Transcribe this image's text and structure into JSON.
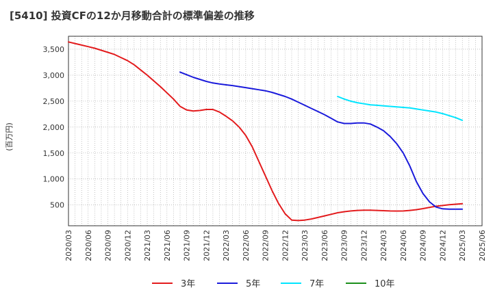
{
  "chart_data": {
    "type": "line",
    "title": "[5410]  投資CFの12か月移動合計の標準偏差の推移",
    "ylabel": "(百万円)",
    "xlabel": "",
    "ylim": [
      100,
      3750
    ],
    "yticks": [
      500,
      1000,
      1500,
      2000,
      2500,
      3000,
      3500
    ],
    "ytick_labels": [
      "500",
      "1,000",
      "1,500",
      "2,000",
      "2,500",
      "3,000",
      "3,500"
    ],
    "x_tick_labels": [
      "2020/03",
      "2020/06",
      "2020/09",
      "2020/12",
      "2021/03",
      "2021/06",
      "2021/09",
      "2021/12",
      "2022/03",
      "2022/06",
      "2022/09",
      "2022/12",
      "2023/03",
      "2023/06",
      "2023/09",
      "2023/12",
      "2024/03",
      "2024/06",
      "2024/09",
      "2024/12",
      "2025/03",
      "2025/06"
    ],
    "grid": true,
    "legend_position": "bottom",
    "series": [
      {
        "name": "3年",
        "color": "#e31a1c",
        "x": [
          "2020/03",
          "2020/04",
          "2020/05",
          "2020/06",
          "2020/07",
          "2020/08",
          "2020/09",
          "2020/10",
          "2020/11",
          "2020/12",
          "2021/01",
          "2021/02",
          "2021/03",
          "2021/04",
          "2021/05",
          "2021/06",
          "2021/07",
          "2021/08",
          "2021/09",
          "2021/10",
          "2021/11",
          "2021/12",
          "2022/01",
          "2022/02",
          "2022/03",
          "2022/04",
          "2022/05",
          "2022/06",
          "2022/07",
          "2022/08",
          "2022/09",
          "2022/10",
          "2022/11",
          "2022/12",
          "2023/01",
          "2023/02",
          "2023/03",
          "2023/04",
          "2023/05",
          "2023/06",
          "2023/07",
          "2023/08",
          "2023/09",
          "2023/10",
          "2023/11",
          "2023/12",
          "2024/01",
          "2024/02",
          "2024/03",
          "2024/04",
          "2024/05",
          "2024/06",
          "2024/07",
          "2024/08",
          "2024/09",
          "2024/10",
          "2024/11",
          "2024/12",
          "2025/01",
          "2025/02",
          "2025/03"
        ],
        "values": [
          3640,
          3610,
          3580,
          3550,
          3520,
          3480,
          3440,
          3400,
          3340,
          3280,
          3200,
          3100,
          3000,
          2890,
          2780,
          2660,
          2540,
          2400,
          2330,
          2310,
          2320,
          2340,
          2340,
          2290,
          2210,
          2120,
          2000,
          1840,
          1620,
          1340,
          1060,
          780,
          530,
          330,
          210,
          200,
          210,
          230,
          260,
          290,
          320,
          350,
          370,
          385,
          395,
          400,
          400,
          395,
          390,
          385,
          383,
          385,
          395,
          410,
          430,
          455,
          475,
          490,
          505,
          515,
          525
        ]
      },
      {
        "name": "5年",
        "color": "#1a1adb",
        "x": [
          "2021/08",
          "2021/09",
          "2021/10",
          "2021/11",
          "2021/12",
          "2022/01",
          "2022/02",
          "2022/03",
          "2022/04",
          "2022/05",
          "2022/06",
          "2022/07",
          "2022/08",
          "2022/09",
          "2022/10",
          "2022/11",
          "2022/12",
          "2023/01",
          "2023/02",
          "2023/03",
          "2023/04",
          "2023/05",
          "2023/06",
          "2023/07",
          "2023/08",
          "2023/09",
          "2023/10",
          "2023/11",
          "2023/12",
          "2024/01",
          "2024/02",
          "2024/03",
          "2024/04",
          "2024/05",
          "2024/06",
          "2024/07",
          "2024/08",
          "2024/09",
          "2024/10",
          "2024/11",
          "2024/12",
          "2025/01",
          "2025/02",
          "2025/03"
        ],
        "values": [
          3060,
          3010,
          2960,
          2920,
          2880,
          2850,
          2830,
          2815,
          2800,
          2780,
          2760,
          2740,
          2720,
          2700,
          2670,
          2630,
          2590,
          2540,
          2480,
          2420,
          2360,
          2300,
          2240,
          2170,
          2100,
          2070,
          2070,
          2080,
          2080,
          2060,
          2000,
          1930,
          1820,
          1680,
          1500,
          1250,
          950,
          720,
          560,
          460,
          425,
          420,
          420,
          420
        ]
      },
      {
        "name": "7年",
        "color": "#00e5ff",
        "x": [
          "2023/08",
          "2023/09",
          "2023/10",
          "2023/11",
          "2023/12",
          "2024/01",
          "2024/02",
          "2024/03",
          "2024/04",
          "2024/05",
          "2024/06",
          "2024/07",
          "2024/08",
          "2024/09",
          "2024/10",
          "2024/11",
          "2024/12",
          "2025/01",
          "2025/02",
          "2025/03"
        ],
        "values": [
          2590,
          2540,
          2500,
          2470,
          2450,
          2430,
          2420,
          2410,
          2400,
          2390,
          2380,
          2370,
          2350,
          2330,
          2310,
          2290,
          2260,
          2220,
          2180,
          2130
        ]
      },
      {
        "name": "10年",
        "color": "#1a8f1a",
        "x": [],
        "values": []
      }
    ]
  }
}
